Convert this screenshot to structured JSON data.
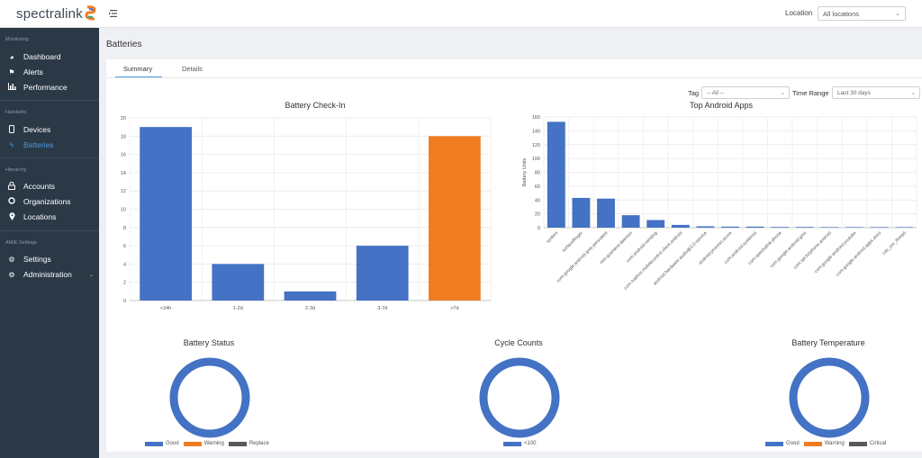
{
  "app": {
    "logo_text": "spectralink",
    "location_label": "Location",
    "location_value": "All locations"
  },
  "sidebar": {
    "sections": [
      {
        "title": "Monitoring",
        "items": [
          {
            "label": "Dashboard",
            "icon": "gauge-icon"
          },
          {
            "label": "Alerts",
            "icon": "flag-icon"
          },
          {
            "label": "Performance",
            "icon": "bar-chart-icon"
          }
        ]
      },
      {
        "title": "Handsets",
        "items": [
          {
            "label": "Devices",
            "icon": "phone-icon"
          },
          {
            "label": "Batteries",
            "icon": "bolt-icon",
            "active": true
          }
        ]
      },
      {
        "title": "Hierarchy",
        "items": [
          {
            "label": "Accounts",
            "icon": "lock-icon"
          },
          {
            "label": "Organizations",
            "icon": "circle-icon"
          },
          {
            "label": "Locations",
            "icon": "map-pin-icon"
          }
        ]
      },
      {
        "title": "AMIE Settings",
        "items": [
          {
            "label": "Settings",
            "icon": "gear-icon"
          },
          {
            "label": "Administration",
            "icon": "gears-icon",
            "caret": "chevron-down-icon"
          }
        ]
      }
    ]
  },
  "page": {
    "title": "Batteries",
    "tabs": [
      {
        "label": "Summary",
        "active": true
      },
      {
        "label": "Details"
      }
    ]
  },
  "filters": {
    "tag_label": "Tag",
    "tag_value": "-- All --",
    "range_label": "Time Range",
    "range_value": "Last 30 days"
  },
  "colors": {
    "blue": "#4472c4",
    "orange": "#f07c22",
    "gray": "#595959",
    "accent": "#4a9be0"
  },
  "chart_data": [
    {
      "type": "bar",
      "title": "Battery Check-In",
      "categories": [
        "<24h",
        "1-2d",
        "2-3d",
        "3-7d",
        ">7d"
      ],
      "values": [
        19,
        4,
        1,
        6,
        18
      ],
      "bar_colors": [
        "#4472c4",
        "#4472c4",
        "#4472c4",
        "#4472c4",
        "#f07c22"
      ],
      "ylim": [
        0,
        20
      ],
      "yticks": [
        0,
        2,
        4,
        6,
        8,
        10,
        12,
        14,
        16,
        18,
        20
      ],
      "grid": true
    },
    {
      "type": "bar",
      "title": "Top Android Apps",
      "ylabel": "Battery Units",
      "categories": [
        "system",
        "surfaceflinger",
        "com.google.android.gms.persistent",
        "mm-qcamera-daemon",
        "com.android.vending",
        "com.sophos.mobilecontrol.client.android",
        "android.hardware.audio@2.0-service",
        "android.process.acore",
        "com.android.systemui",
        "com.spectralink.phone",
        "com.google.android.gms",
        "com.spl.bizphone.android",
        "com.google.android.youtube",
        "com.google.android.apps.docs",
        "cds_snr_thread"
      ],
      "values": [
        153,
        43,
        42,
        18,
        11,
        4,
        2,
        1.5,
        1.5,
        1,
        1,
        0.8,
        0.8,
        0.8,
        0.8
      ],
      "ylim": [
        0,
        160
      ],
      "yticks": [
        0,
        20,
        40,
        60,
        80,
        100,
        120,
        140,
        160
      ],
      "grid": true
    },
    {
      "type": "pie",
      "title": "Battery Status",
      "labels": [
        "Good",
        "Warning",
        "Replace"
      ],
      "values": [
        100,
        0,
        0
      ],
      "colors": [
        "#4472c4",
        "#f07c22",
        "#595959"
      ],
      "legend": "bottom"
    },
    {
      "type": "pie",
      "title": "Cycle Counts",
      "labels": [
        "<100"
      ],
      "values": [
        100
      ],
      "colors": [
        "#4472c4"
      ],
      "legend": "bottom"
    },
    {
      "type": "pie",
      "title": "Battery Temperature",
      "labels": [
        "Good",
        "Warning",
        "Critical"
      ],
      "values": [
        100,
        0,
        0
      ],
      "colors": [
        "#4472c4",
        "#f07c22",
        "#595959"
      ],
      "legend": "bottom"
    }
  ]
}
